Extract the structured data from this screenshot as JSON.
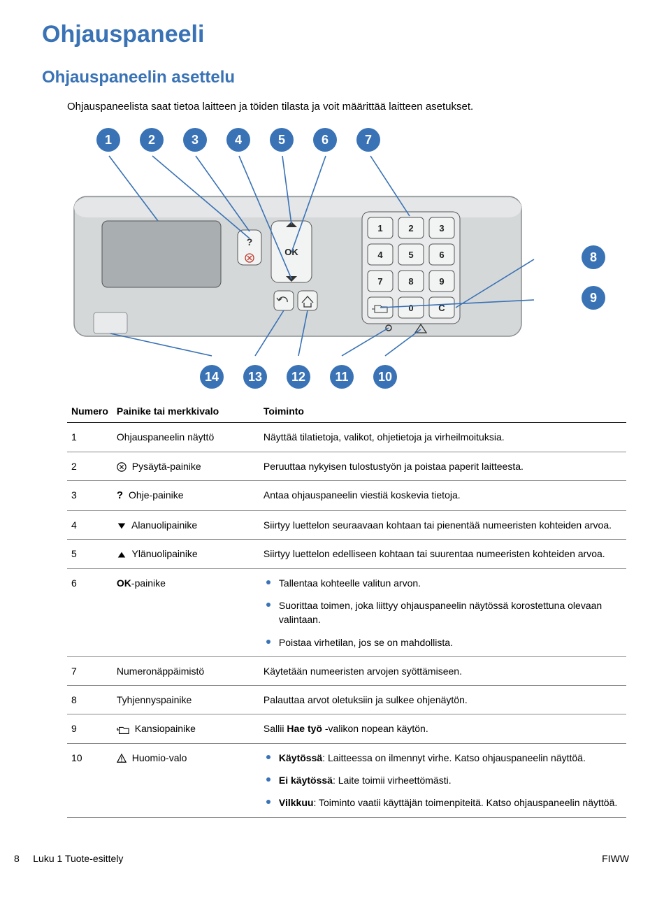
{
  "title": "Ohjauspaneeli",
  "subtitle": "Ohjauspaneelin asettelu",
  "intro": "Ohjauspaneelista saat tietoa laitteen ja töiden tilasta ja voit määrittää laitteen asetukset.",
  "callouts_top": [
    "1",
    "2",
    "3",
    "4",
    "5",
    "6",
    "7"
  ],
  "callouts_right": [
    "8",
    "9"
  ],
  "callouts_bottom": [
    "14",
    "13",
    "12",
    "11",
    "10"
  ],
  "panel": {
    "bg_color": "#d5d8d9",
    "border_color": "#8a8f92",
    "screen_bg": "#a9aeb1",
    "key_bg": "#f2f3f3",
    "key_border": "#555",
    "ok_label": "OK",
    "keypad": [
      [
        "1",
        "2",
        "3"
      ],
      [
        "4",
        "5",
        "6"
      ],
      [
        "7",
        "8",
        "9"
      ],
      [
        "",
        "0",
        "C"
      ]
    ],
    "callout_line_color": "#3972b5"
  },
  "table": {
    "headers": [
      "Numero",
      "Painike tai merkkivalo",
      "Toiminto"
    ],
    "rows": [
      {
        "n": "1",
        "label": "Ohjauspaneelin näyttö",
        "icon": "",
        "func": {
          "type": "text",
          "text": "Näyttää tilatietoja, valikot, ohjetietoja ja virheilmoituksia."
        }
      },
      {
        "n": "2",
        "label": "Pysäytä-painike",
        "icon": "cancel",
        "func": {
          "type": "text",
          "text": "Peruuttaa nykyisen tulostustyön ja poistaa paperit laitteesta."
        }
      },
      {
        "n": "3",
        "label": "Ohje-painike",
        "icon": "help",
        "func": {
          "type": "text",
          "text": "Antaa ohjauspaneelin viestiä koskevia tietoja."
        }
      },
      {
        "n": "4",
        "label": "Alanuolipainike",
        "icon": "down",
        "func": {
          "type": "text",
          "text": "Siirtyy luettelon seuraavaan kohtaan tai pienentää numeeristen kohteiden arvoa."
        }
      },
      {
        "n": "5",
        "label": "Ylänuolipainike",
        "icon": "up",
        "func": {
          "type": "text",
          "text": "Siirtyy luettelon edelliseen kohtaan tai suurentaa numeeristen kohteiden arvoa."
        }
      },
      {
        "n": "6",
        "label": "OK-painike",
        "icon": "",
        "bold_label": true,
        "func": {
          "type": "list",
          "items": [
            {
              "text": "Tallentaa kohteelle valitun arvon."
            },
            {
              "text": "Suorittaa toimen, joka liittyy ohjauspaneelin näytössä korostettuna olevaan valintaan."
            },
            {
              "text": "Poistaa virhetilan, jos se on mahdollista."
            }
          ]
        }
      },
      {
        "n": "7",
        "label": "Numeronäppäimistö",
        "icon": "",
        "func": {
          "type": "text",
          "text": "Käytetään numeeristen arvojen syöttämiseen."
        }
      },
      {
        "n": "8",
        "label": "Tyhjennyspainike",
        "icon": "",
        "func": {
          "type": "text",
          "text": "Palauttaa arvot oletuksiin ja sulkee ohjenäytön."
        }
      },
      {
        "n": "9",
        "label": "Kansiopainike",
        "icon": "folder",
        "func": {
          "type": "rich",
          "prefix": "Sallii ",
          "bold": "Hae työ",
          "suffix": " -valikon nopean käytön."
        }
      },
      {
        "n": "10",
        "label": "Huomio-valo",
        "icon": "attention",
        "func": {
          "type": "list",
          "items": [
            {
              "bold": "Käytössä",
              "text": ": Laitteessa on ilmennyt virhe. Katso ohjauspaneelin näyttöä."
            },
            {
              "bold": "Ei käytössä",
              "text": ": Laite toimii virheettömästi."
            },
            {
              "bold": "Vilkkuu",
              "text": ": Toiminto vaatii käyttäjän toimenpiteitä. Katso ohjauspaneelin näyttöä."
            }
          ]
        }
      }
    ]
  },
  "footer": {
    "page_num": "8",
    "chapter": "Luku 1   Tuote-esittely",
    "right": "FIWW"
  }
}
